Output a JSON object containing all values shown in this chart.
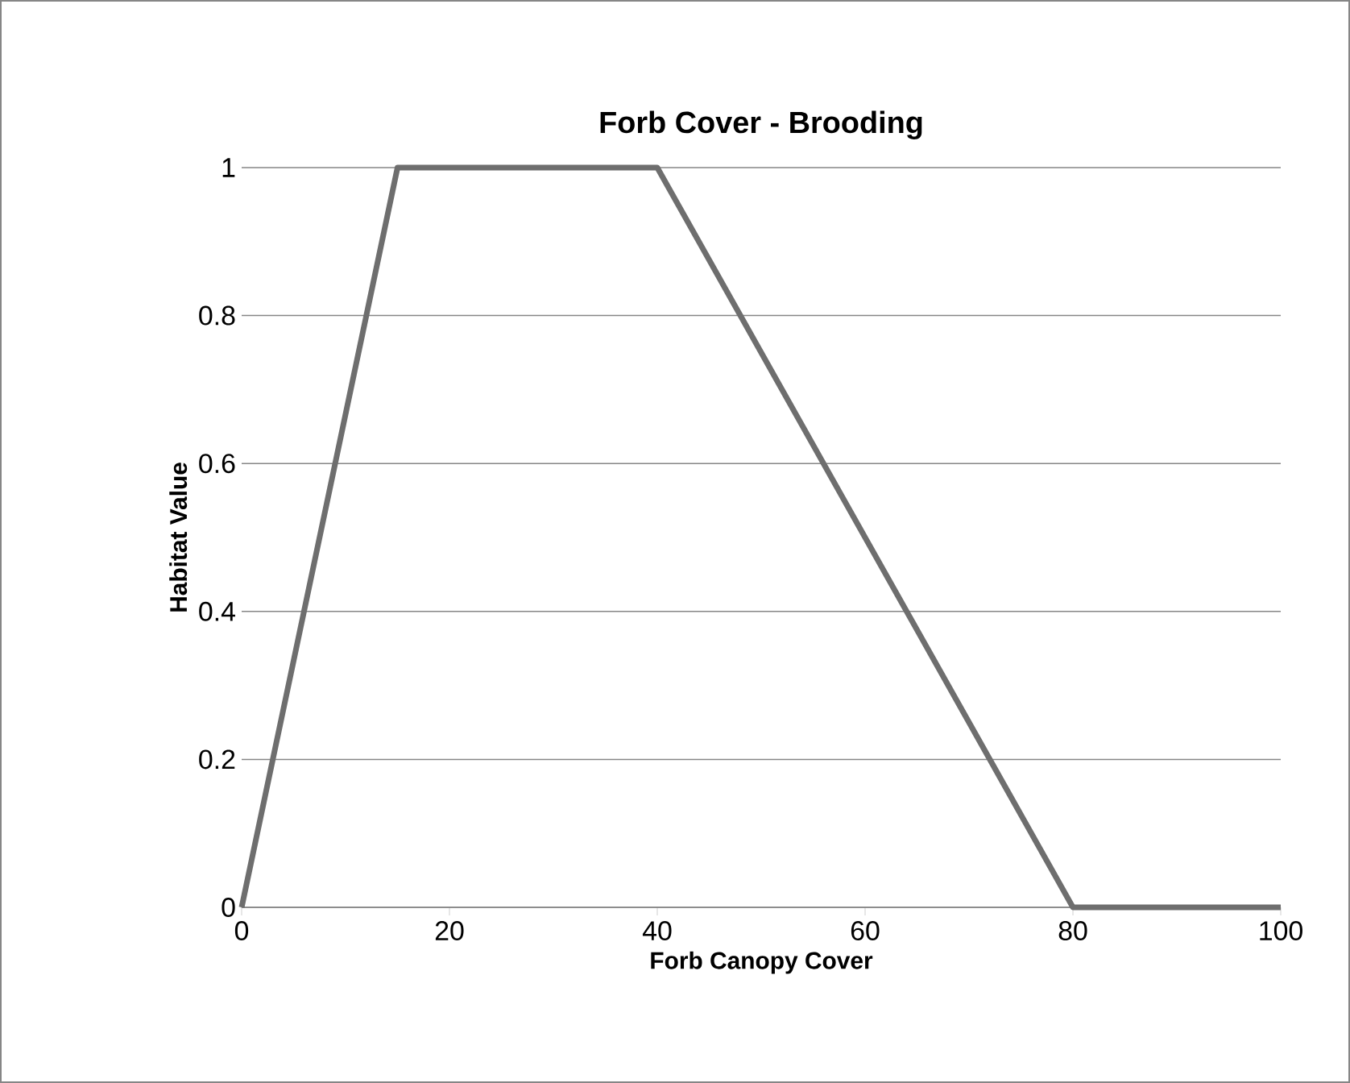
{
  "chart_data": {
    "type": "line",
    "title": "Forb Cover - Brooding",
    "xlabel": "Forb Canopy Cover",
    "ylabel": "Habitat Value",
    "x": [
      0,
      15,
      40,
      80,
      100
    ],
    "series": [
      {
        "color": "#6e6e6e",
        "values": [
          0,
          1,
          1,
          0,
          0
        ]
      }
    ],
    "xlim": [
      0,
      100
    ],
    "xticks": [
      0,
      20,
      40,
      60,
      80,
      100
    ],
    "ylim": [
      0,
      1
    ],
    "yticks": [
      0,
      0.2,
      0.4,
      0.6,
      0.8,
      1
    ],
    "grid": "y",
    "marker": "none",
    "line_style": "solid"
  }
}
